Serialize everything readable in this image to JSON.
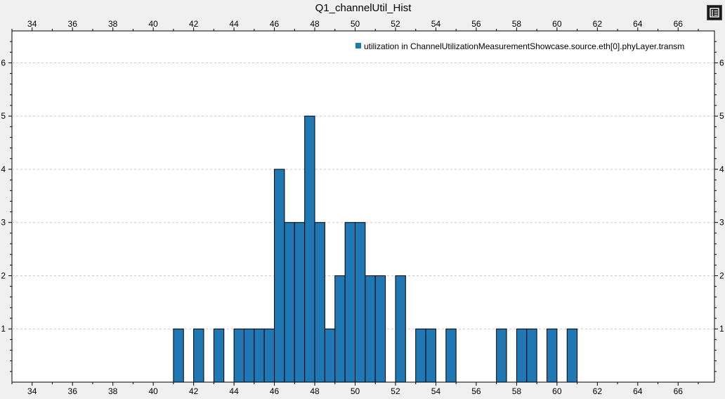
{
  "chart_data": {
    "type": "bar",
    "title": "Q1_channelUtil_Hist",
    "xlabel": "",
    "ylabel": "",
    "xlim": [
      33.0,
      67.8
    ],
    "ylim": [
      0,
      6.6
    ],
    "bin_width": 0.5,
    "x_ticks": [
      34,
      36,
      38,
      40,
      42,
      44,
      46,
      48,
      50,
      52,
      54,
      56,
      58,
      60,
      62,
      64,
      66
    ],
    "y_ticks": [
      1,
      2,
      3,
      4,
      5,
      6
    ],
    "grid": "horizontal-dashed",
    "legend_position": "top-right",
    "series": [
      {
        "name": "utilization in ChannelUtilizationMeasurementShowcase.source.eth[0].phyLayer.transm",
        "color": "#1f77b4",
        "bins": [
          {
            "x": 41.0,
            "count": 1
          },
          {
            "x": 42.0,
            "count": 1
          },
          {
            "x": 43.0,
            "count": 1
          },
          {
            "x": 44.0,
            "count": 1
          },
          {
            "x": 44.5,
            "count": 1
          },
          {
            "x": 45.0,
            "count": 1
          },
          {
            "x": 45.5,
            "count": 1
          },
          {
            "x": 46.0,
            "count": 4
          },
          {
            "x": 46.5,
            "count": 3
          },
          {
            "x": 47.0,
            "count": 3
          },
          {
            "x": 47.5,
            "count": 5
          },
          {
            "x": 48.0,
            "count": 3
          },
          {
            "x": 48.5,
            "count": 1
          },
          {
            "x": 49.0,
            "count": 2
          },
          {
            "x": 49.5,
            "count": 3
          },
          {
            "x": 50.0,
            "count": 3
          },
          {
            "x": 50.5,
            "count": 2
          },
          {
            "x": 51.0,
            "count": 2
          },
          {
            "x": 52.0,
            "count": 2
          },
          {
            "x": 53.0,
            "count": 1
          },
          {
            "x": 53.5,
            "count": 1
          },
          {
            "x": 54.5,
            "count": 1
          },
          {
            "x": 57.0,
            "count": 1
          },
          {
            "x": 58.0,
            "count": 1
          },
          {
            "x": 58.5,
            "count": 1
          },
          {
            "x": 59.5,
            "count": 1
          },
          {
            "x": 60.5,
            "count": 1
          }
        ]
      }
    ]
  },
  "toolbar": {
    "legend_icon": "list-icon"
  }
}
